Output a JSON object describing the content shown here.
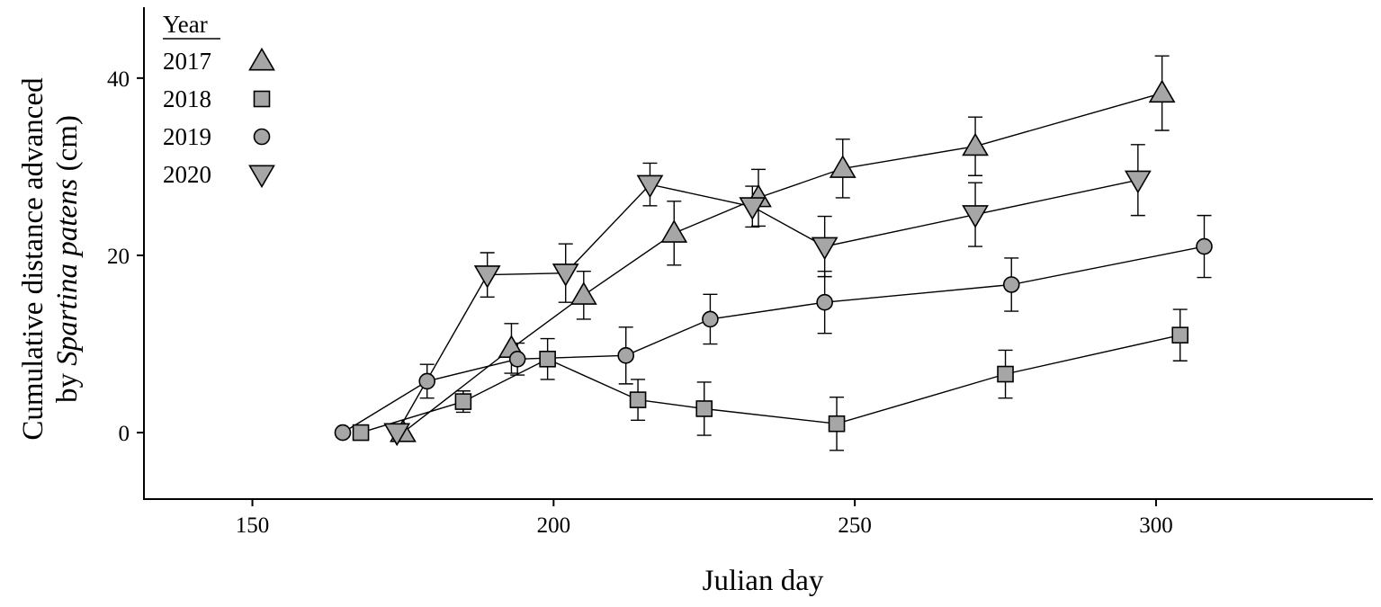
{
  "chart_data": {
    "type": "line",
    "title": "",
    "xlabel": "Julian day",
    "ylabel_line1": "Cumulative distance advanced",
    "ylabel_line2_prefix": "by ",
    "ylabel_line2_species": "Spartina patens",
    "ylabel_line2_suffix": " (cm)",
    "xlim": [
      132,
      336
    ],
    "ylim": [
      -7.5,
      48
    ],
    "x_ticks": [
      150,
      200,
      250,
      300
    ],
    "y_ticks": [
      0,
      20,
      40
    ],
    "grid": false,
    "legend": {
      "title": "Year",
      "placement": "top-left",
      "entries": [
        {
          "label": "2017",
          "marker": "triangle-up"
        },
        {
          "label": "2018",
          "marker": "square"
        },
        {
          "label": "2019",
          "marker": "circle"
        },
        {
          "label": "2020",
          "marker": "triangle-down"
        }
      ]
    },
    "colors": {
      "marker_fill": "#a6a6a6",
      "marker_stroke": "#000000",
      "line": "#000000"
    },
    "series": [
      {
        "name": "2017",
        "marker": "triangle-up",
        "points": [
          {
            "x": 175,
            "y": 0,
            "err": 0
          },
          {
            "x": 193,
            "y": 9.5,
            "err": 2.8
          },
          {
            "x": 205,
            "y": 15.5,
            "err": 2.7
          },
          {
            "x": 220,
            "y": 22.5,
            "err": 3.6
          },
          {
            "x": 234,
            "y": 26.5,
            "err": 3.2
          },
          {
            "x": 248,
            "y": 29.8,
            "err": 3.3
          },
          {
            "x": 270,
            "y": 32.3,
            "err": 3.3
          },
          {
            "x": 301,
            "y": 38.3,
            "err": 4.2
          }
        ]
      },
      {
        "name": "2018",
        "marker": "square",
        "points": [
          {
            "x": 168,
            "y": 0,
            "err": 0
          },
          {
            "x": 185,
            "y": 3.5,
            "err": 1.2
          },
          {
            "x": 199,
            "y": 8.3,
            "err": 2.3
          },
          {
            "x": 214,
            "y": 3.7,
            "err": 2.3
          },
          {
            "x": 225,
            "y": 2.7,
            "err": 3.0
          },
          {
            "x": 247,
            "y": 1.0,
            "err": 3.0
          },
          {
            "x": 275,
            "y": 6.6,
            "err": 2.7
          },
          {
            "x": 304,
            "y": 11.0,
            "err": 2.9
          }
        ]
      },
      {
        "name": "2019",
        "marker": "circle",
        "points": [
          {
            "x": 165,
            "y": 0,
            "err": 0
          },
          {
            "x": 179,
            "y": 5.8,
            "err": 1.9
          },
          {
            "x": 194,
            "y": 8.3,
            "err": 1.8
          },
          {
            "x": 212,
            "y": 8.7,
            "err": 3.2
          },
          {
            "x": 226,
            "y": 12.8,
            "err": 2.8
          },
          {
            "x": 245,
            "y": 14.7,
            "err": 3.5
          },
          {
            "x": 276,
            "y": 16.7,
            "err": 3.0
          },
          {
            "x": 308,
            "y": 21.0,
            "err": 3.5
          }
        ]
      },
      {
        "name": "2020",
        "marker": "triangle-down",
        "points": [
          {
            "x": 174,
            "y": 0,
            "err": 0
          },
          {
            "x": 189,
            "y": 17.8,
            "err": 2.5
          },
          {
            "x": 202,
            "y": 18.0,
            "err": 3.3
          },
          {
            "x": 216,
            "y": 28.0,
            "err": 2.4
          },
          {
            "x": 233,
            "y": 25.5,
            "err": 2.3
          },
          {
            "x": 245,
            "y": 21.0,
            "err": 3.4
          },
          {
            "x": 270,
            "y": 24.6,
            "err": 3.6
          },
          {
            "x": 297,
            "y": 28.5,
            "err": 4.0
          }
        ]
      }
    ]
  }
}
